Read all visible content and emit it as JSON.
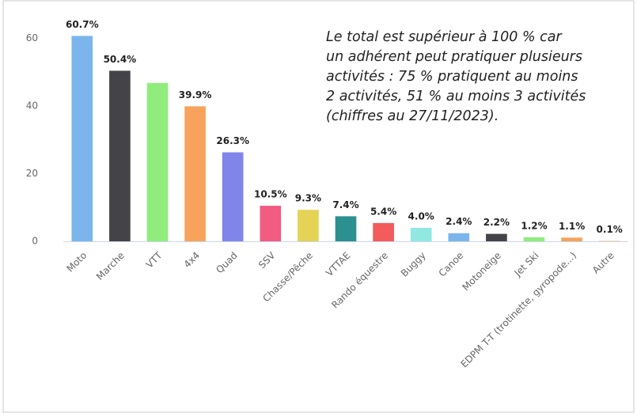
{
  "chart_data": {
    "type": "bar",
    "categories": [
      "Moto",
      "Marche",
      "VTT",
      "4x4",
      "Quad",
      "SSV",
      "Chasse/Pêche",
      "VTTAE",
      "Rando équestre",
      "Buggy",
      "Canoe",
      "Motoneige",
      "Jet Ski",
      "EDPM T-T (trotinette, gyropode...)",
      "Autre"
    ],
    "values": [
      60.7,
      50.4,
      46.8,
      39.9,
      26.3,
      10.5,
      9.3,
      7.4,
      5.4,
      4.0,
      2.4,
      2.2,
      1.2,
      1.1,
      0.1
    ],
    "value_labels": [
      "60.7%",
      "50.4%",
      null,
      "39.9%",
      "26.3%",
      "10.5%",
      "9.3%",
      "7.4%",
      "5.4%",
      "4.0%",
      "2.4%",
      "2.2%",
      "1.2%",
      "1.1%",
      "0.1%"
    ],
    "colors": [
      "#7cb5ec",
      "#434348",
      "#90ed7d",
      "#f7a35c",
      "#8085e9",
      "#f15c80",
      "#e4d354",
      "#2b908f",
      "#f45b5b",
      "#91e8e1",
      "#7cb5ec",
      "#434348",
      "#90ed7d",
      "#f7a35c",
      "#f7a35c"
    ],
    "ylim": [
      0,
      65
    ],
    "yticks": [
      0,
      20,
      40,
      60
    ],
    "grid": false,
    "annotation": [
      "Le total est supérieur à 100 % car",
      "un adhérent peut pratiquer plusieurs",
      "activités : 75 % pratiquent au moins",
      "2 activités, 51 % au moins 3 activités",
      "(chiffres au 27/11/2023)."
    ]
  }
}
